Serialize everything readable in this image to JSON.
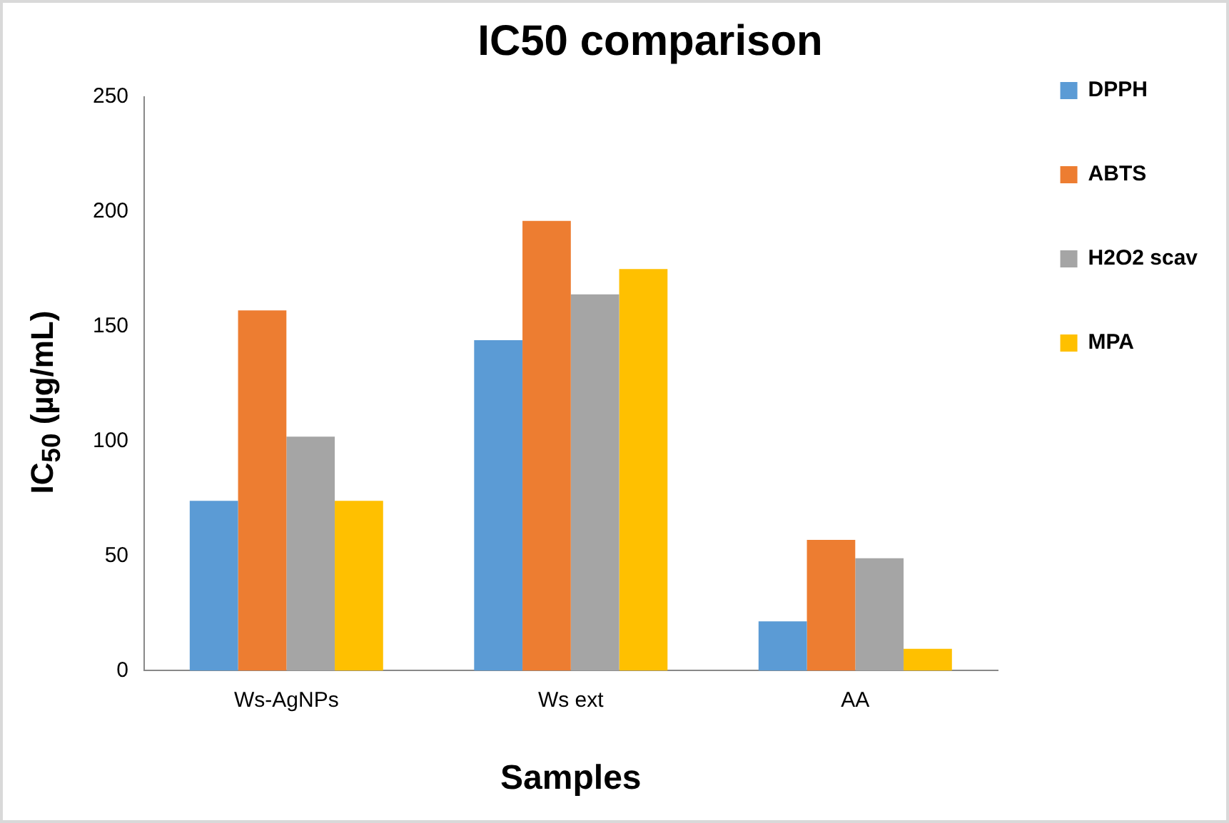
{
  "chart_data": {
    "type": "bar",
    "title": "IC50 comparison",
    "xlabel": "Samples",
    "ylabel": "IC$_{50}$ (µg/mL)",
    "categories": [
      "Ws-AgNPs",
      "Ws ext",
      "AA"
    ],
    "series": [
      {
        "name": "DPPH",
        "color": "#5b9bd5",
        "values": [
          74,
          144,
          21.5
        ]
      },
      {
        "name": "ABTS",
        "color": "#ed7d31",
        "values": [
          157,
          196,
          57
        ]
      },
      {
        "name": "H2O2 scav",
        "color": "#a5a5a5",
        "values": [
          102,
          164,
          49
        ]
      },
      {
        "name": "MPA",
        "color": "#ffc000",
        "values": [
          74,
          175,
          9.5
        ]
      }
    ],
    "ylim": [
      0,
      250
    ],
    "yticks": [
      0,
      50,
      100,
      150,
      200,
      250
    ],
    "grid": false,
    "legend": "right"
  }
}
